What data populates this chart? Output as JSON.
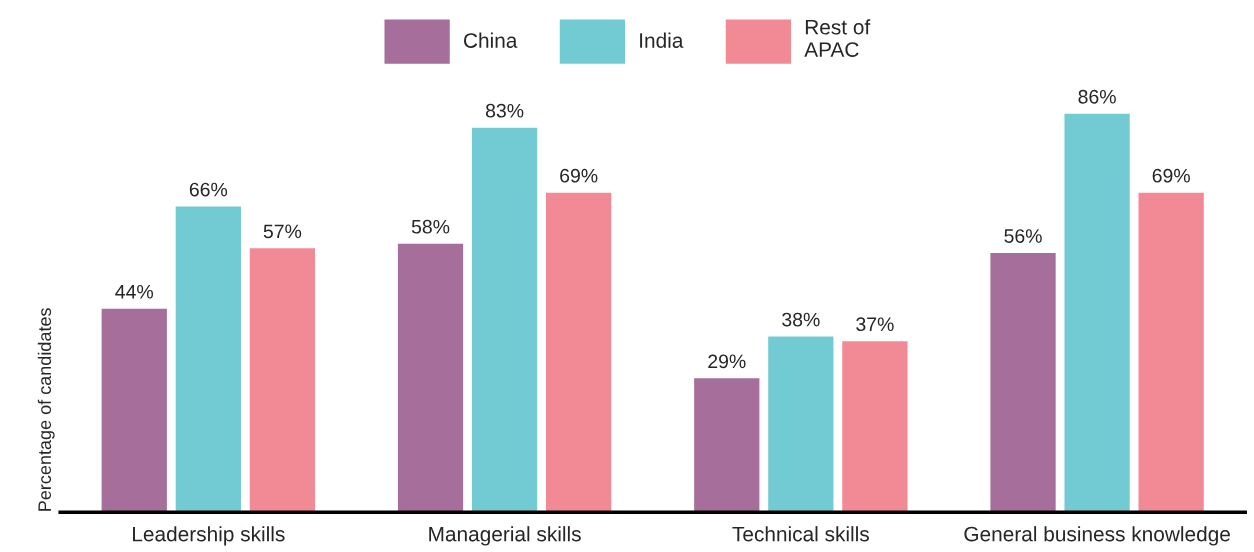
{
  "chart_data": {
    "type": "bar",
    "ylabel": "Percentage of candidates",
    "categories": [
      "Leadership skills",
      "Managerial skills",
      "Technical skills",
      "General business knowledge"
    ],
    "series": [
      {
        "name": "China",
        "color": "#a66e9a",
        "values": [
          44,
          58,
          29,
          56
        ],
        "value_labels": [
          "44%",
          "58%",
          "29%",
          "56%"
        ]
      },
      {
        "name": "India",
        "color": "#72cbd3",
        "values": [
          66,
          83,
          38,
          86
        ],
        "value_labels": [
          "66%",
          "83%",
          "38%",
          "86%"
        ]
      },
      {
        "name": "Rest of\nAPAC",
        "color": "#f28a96",
        "values": [
          57,
          69,
          37,
          69
        ],
        "value_labels": [
          "57%",
          "69%",
          "37%",
          "69%"
        ]
      }
    ],
    "legend": "top",
    "grid": false
  }
}
